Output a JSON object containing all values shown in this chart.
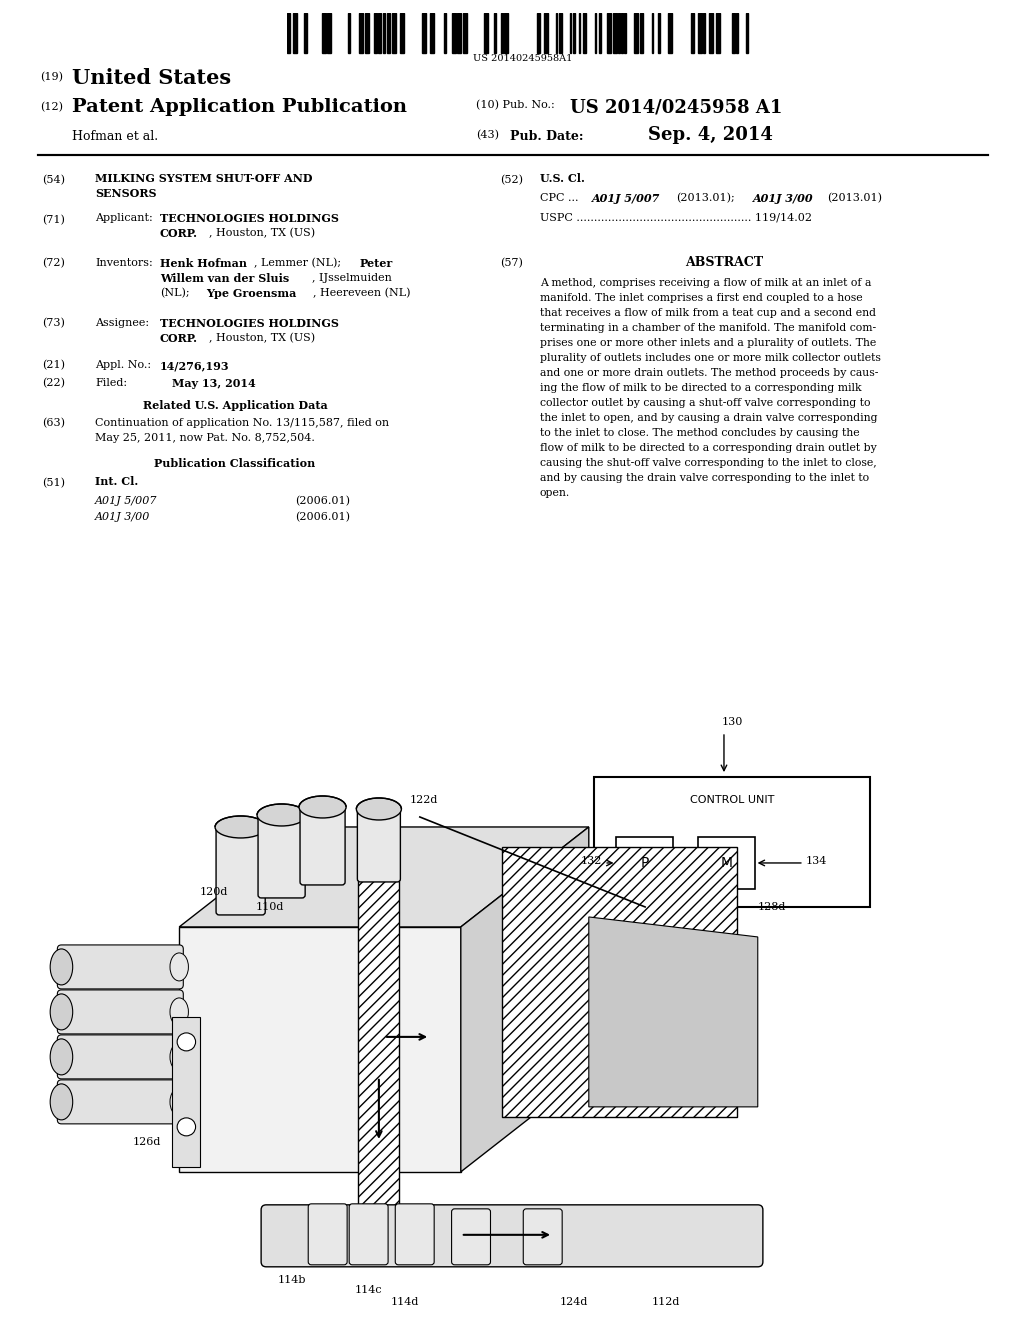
{
  "background_color": "#ffffff",
  "barcode_text": "US 20140245958A1",
  "country": "United States",
  "pub_type": "Patent Application Publication",
  "pub_num_label": "(10) Pub. No.:",
  "pub_num": "US 2014/0245958 A1",
  "date_label": "(43) Pub. Date:",
  "pub_date": "Sep. 4, 2014",
  "authors": "Hofman et al.",
  "num19": "(19)",
  "num12": "(12)",
  "abstract_lines": [
    "A method, comprises receiving a flow of milk at an inlet of a",
    "manifold. The inlet comprises a first end coupled to a hose",
    "that receives a flow of milk from a teat cup and a second end",
    "terminating in a chamber of the manifold. The manifold com-",
    "prises one or more other inlets and a plurality of outlets. The",
    "plurality of outlets includes one or more milk collector outlets",
    "and one or more drain outlets. The method proceeds by caus-",
    "ing the flow of milk to be directed to a corresponding milk",
    "collector outlet by causing a shut-off valve corresponding to",
    "the inlet to open, and by causing a drain valve corresponding",
    "to the inlet to close. The method concludes by causing the",
    "flow of milk to be directed to a corresponding drain outlet by",
    "causing the shut-off valve corresponding to the inlet to close,",
    "and by causing the drain valve corresponding to the inlet to",
    "open."
  ]
}
